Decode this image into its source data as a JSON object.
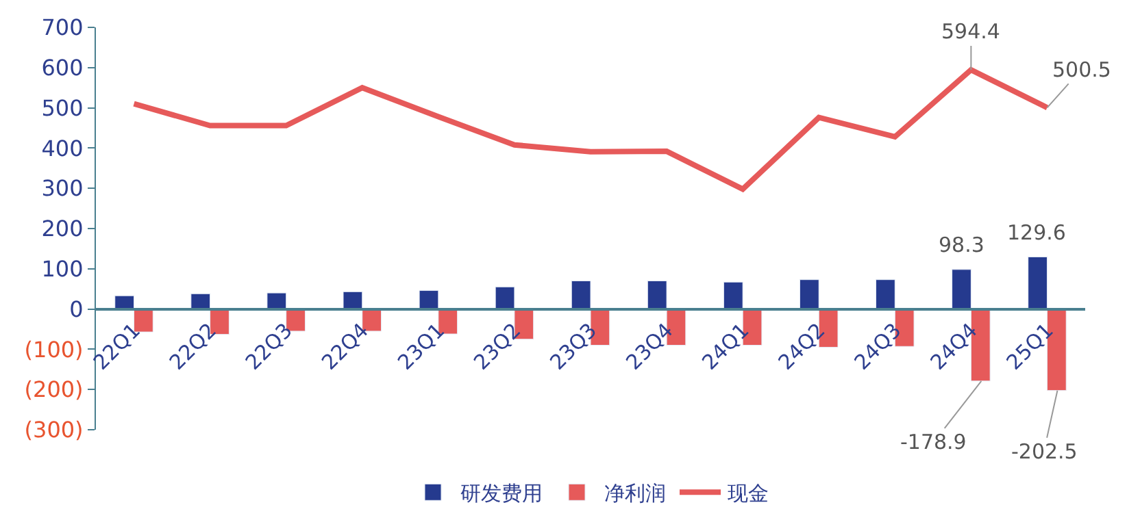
{
  "chart_data": {
    "type": "bar",
    "categories": [
      "22Q1",
      "22Q2",
      "22Q3",
      "22Q4",
      "23Q1",
      "23Q2",
      "23Q3",
      "23Q4",
      "24Q1",
      "24Q2",
      "24Q3",
      "24Q4",
      "25Q1"
    ],
    "series": [
      {
        "name": "研发费用",
        "color": "#253a8e",
        "values": [
          33,
          38,
          40,
          43,
          46,
          55,
          70,
          70,
          67,
          73,
          73,
          98.3,
          129.6
        ],
        "value_labels": [
          null,
          null,
          null,
          null,
          null,
          null,
          null,
          null,
          null,
          null,
          null,
          "98.3",
          "129.6"
        ]
      },
      {
        "name": "净利润",
        "color": "#e65a5a",
        "values": [
          -57,
          -63,
          -55,
          -55,
          -62,
          -75,
          -90,
          -90,
          -90,
          -95,
          -93,
          -178.9,
          -202.5
        ],
        "value_labels": [
          null,
          null,
          null,
          null,
          null,
          null,
          null,
          null,
          null,
          null,
          null,
          "-178.9",
          "-202.5"
        ]
      },
      {
        "name": "现金",
        "type": "line",
        "color": "#e65a5a",
        "values": [
          510,
          456,
          456,
          550,
          478,
          408,
          391,
          392,
          298,
          476,
          428,
          594.4,
          500.5
        ],
        "value_labels": [
          null,
          null,
          null,
          null,
          null,
          null,
          null,
          null,
          null,
          null,
          null,
          "594.4",
          "500.5"
        ]
      }
    ],
    "ylim": [
      -300,
      700
    ],
    "yticks": [
      {
        "value": -300,
        "label": "(300)"
      },
      {
        "value": -200,
        "label": "(200)"
      },
      {
        "value": -100,
        "label": "(100)"
      },
      0,
      100,
      200,
      300,
      400,
      500,
      600,
      700
    ],
    "legend": "bottom",
    "marker": "none",
    "line_style": "solid"
  }
}
